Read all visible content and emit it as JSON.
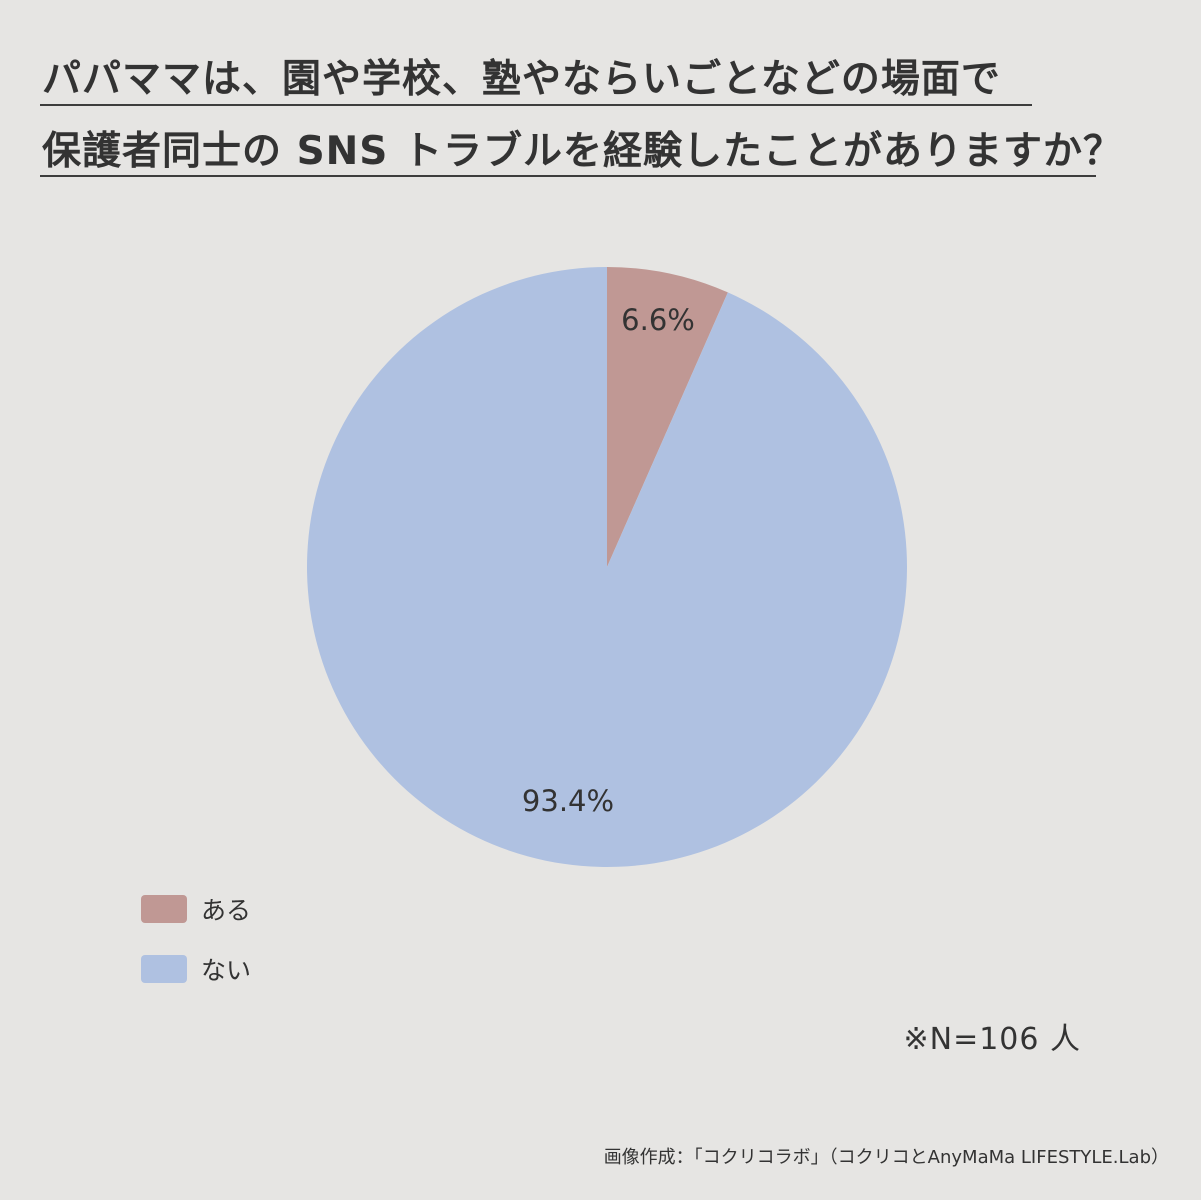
{
  "title": {
    "line1": "パパママは、園や学校、塾やならいごとなどの場面で",
    "line2": "保護者同士の SNS トラブルを経験したことがありますか？"
  },
  "chart_data": {
    "type": "pie",
    "categories": [
      "ある",
      "ない"
    ],
    "values": [
      6.6,
      93.4
    ],
    "labels": [
      "6.6%",
      "93.4%"
    ],
    "colors": [
      "#c09894",
      "#afc1e1"
    ],
    "start_angle_deg": 0,
    "direction": "clockwise",
    "legend_position": "bottom-left"
  },
  "legend": {
    "items": [
      {
        "label": "ある",
        "color": "#c09894"
      },
      {
        "label": "ない",
        "color": "#afc1e1"
      }
    ]
  },
  "note": "※N=106 人",
  "credit": "画像作成：「コクリコラボ」（コクリコとAnyMaMa LIFESTYLE.Lab）"
}
